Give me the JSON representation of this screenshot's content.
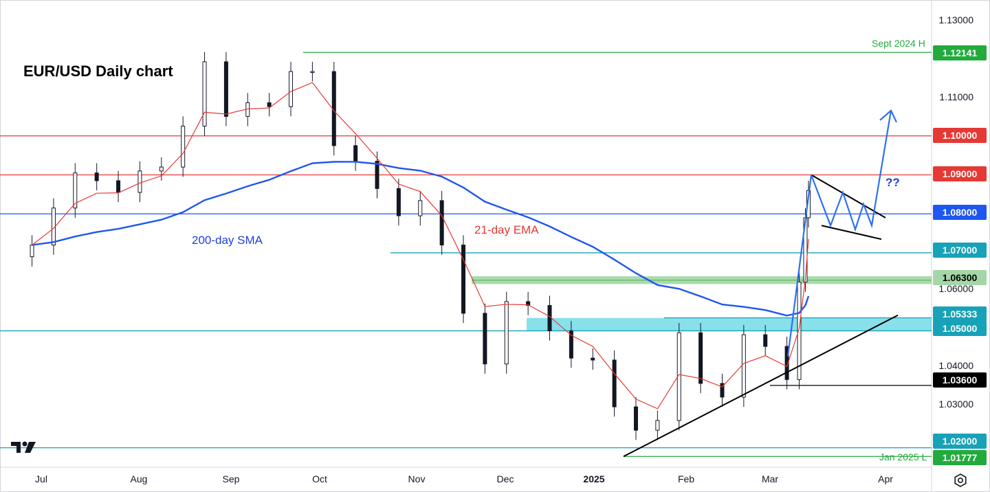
{
  "chart_data": {
    "type": "candlestick",
    "title": "EUR/USD Daily chart",
    "y_axis": {
      "ticks": [
        "1.13000",
        "1.11000",
        "1.06000",
        "1.04000",
        "1.03000"
      ],
      "ylim": [
        1.015,
        1.1345
      ]
    },
    "x_axis": {
      "ticks": [
        {
          "label": "Jul",
          "date": "2024-07-01",
          "bold": false
        },
        {
          "label": "Aug",
          "date": "2024-08-01",
          "bold": false
        },
        {
          "label": "Sep",
          "date": "2024-09-01",
          "bold": false
        },
        {
          "label": "Oct",
          "date": "2024-10-01",
          "bold": false
        },
        {
          "label": "Nov",
          "date": "2024-11-01",
          "bold": false
        },
        {
          "label": "Dec",
          "date": "2024-12-01",
          "bold": false
        },
        {
          "label": "2025",
          "date": "2025-01-01",
          "bold": true
        },
        {
          "label": "Feb",
          "date": "2025-02-01",
          "bold": false
        },
        {
          "label": "Mar",
          "date": "2025-03-01",
          "bold": false
        },
        {
          "label": "Apr",
          "date": "2025-04-01",
          "bold": false
        }
      ]
    },
    "price_levels": [
      {
        "label": "1.12141",
        "value": 1.12141,
        "color": "#22ab3c",
        "note": "Sept 2024 H"
      },
      {
        "label": "1.10000",
        "value": 1.1,
        "color": "#e53935"
      },
      {
        "label": "1.09000",
        "value": 1.09,
        "color": "#e53935"
      },
      {
        "label": "1.08000",
        "value": 1.08,
        "color": "#1e56f0"
      },
      {
        "label": "1.07000",
        "value": 1.07,
        "color": "#17a2b8"
      },
      {
        "label": "1.06300",
        "value": 1.063,
        "color": "#66bb6a"
      },
      {
        "label": "1.05333",
        "value": 1.05333,
        "color": "#17a2b8"
      },
      {
        "label": "1.05000",
        "value": 1.05,
        "color": "#17a2b8"
      },
      {
        "label": "1.03600",
        "value": 1.036,
        "color": "#000000"
      },
      {
        "label": "1.02000",
        "value": 1.02,
        "color": "#17a2b8"
      },
      {
        "label": "1.01777",
        "value": 1.01777,
        "color": "#22ab3c",
        "note": "Jan 2025 L"
      }
    ],
    "zones": [
      {
        "from": 1.062,
        "to": 1.064,
        "color": "#66bb6a"
      },
      {
        "from": 1.05,
        "to": 1.0533,
        "color": "#26c6da"
      }
    ],
    "indicators": [
      {
        "name": "200-day SMA",
        "color": "#1e56f0"
      },
      {
        "name": "21-day EMA",
        "color": "#e53935"
      }
    ],
    "annotations": [
      "??"
    ],
    "candles": [
      {
        "date": "2024-06-28",
        "close": 1.072
      },
      {
        "date": "2024-07-05",
        "close": 1.0815
      },
      {
        "date": "2024-07-12",
        "close": 1.0905
      },
      {
        "date": "2024-07-19",
        "close": 1.0885
      },
      {
        "date": "2024-07-26",
        "close": 1.0855
      },
      {
        "date": "2024-08-02",
        "close": 1.091
      },
      {
        "date": "2024-08-09",
        "close": 1.092
      },
      {
        "date": "2024-08-16",
        "close": 1.1025
      },
      {
        "date": "2024-08-23",
        "close": 1.119
      },
      {
        "date": "2024-08-30",
        "close": 1.105
      },
      {
        "date": "2024-09-06",
        "close": 1.1085
      },
      {
        "date": "2024-09-13",
        "close": 1.1075
      },
      {
        "date": "2024-09-20",
        "close": 1.1165
      },
      {
        "date": "2024-09-27",
        "close": 1.1165
      },
      {
        "date": "2024-10-04",
        "close": 1.0975
      },
      {
        "date": "2024-10-11",
        "close": 1.0935
      },
      {
        "date": "2024-10-18",
        "close": 1.0865
      },
      {
        "date": "2024-10-25",
        "close": 1.0795
      },
      {
        "date": "2024-11-01",
        "close": 1.0834
      },
      {
        "date": "2024-11-08",
        "close": 1.072
      },
      {
        "date": "2024-11-15",
        "close": 1.0545
      },
      {
        "date": "2024-11-22",
        "close": 1.0415
      },
      {
        "date": "2024-11-29",
        "close": 1.0575
      },
      {
        "date": "2024-12-06",
        "close": 1.0565
      },
      {
        "date": "2024-12-13",
        "close": 1.05
      },
      {
        "date": "2024-12-20",
        "close": 1.043
      },
      {
        "date": "2024-12-27",
        "close": 1.0425
      },
      {
        "date": "2025-01-03",
        "close": 1.0305
      },
      {
        "date": "2025-01-10",
        "close": 1.0245
      },
      {
        "date": "2025-01-17",
        "close": 1.027
      },
      {
        "date": "2025-01-24",
        "close": 1.0495
      },
      {
        "date": "2025-01-31",
        "close": 1.0365
      },
      {
        "date": "2025-02-07",
        "close": 1.033
      },
      {
        "date": "2025-02-14",
        "close": 1.049
      },
      {
        "date": "2025-02-21",
        "close": 1.046
      },
      {
        "date": "2025-02-28",
        "close": 1.0375
      },
      {
        "date": "2025-03-04",
        "close": 1.0625
      },
      {
        "date": "2025-03-06",
        "close": 1.079
      },
      {
        "date": "2025-03-07",
        "close": 1.086
      }
    ]
  }
}
